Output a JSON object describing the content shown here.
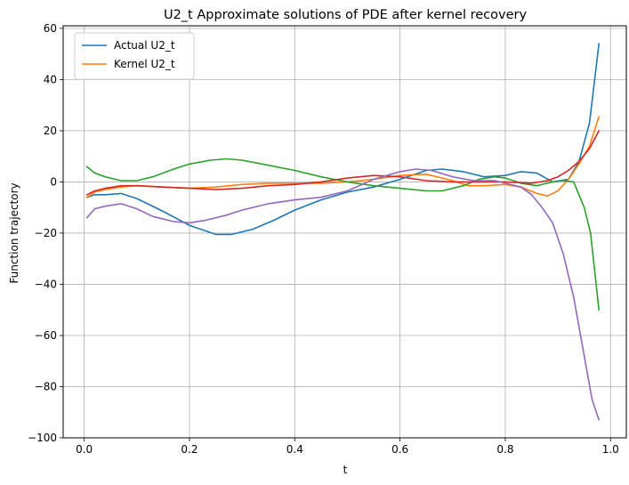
{
  "chart_data": {
    "type": "line",
    "title": "U2_t Approximate solutions of PDE after kernel recovery",
    "xlabel": "t",
    "ylabel": "Function trajectory",
    "xlim": [
      -0.04,
      1.03
    ],
    "ylim": [
      -100,
      61
    ],
    "xticks": [
      0.0,
      0.2,
      0.4,
      0.6,
      0.8,
      1.0
    ],
    "xtick_labels": [
      "0.0",
      "0.2",
      "0.4",
      "0.6",
      "0.8",
      "1.0"
    ],
    "yticks": [
      -100,
      -80,
      -60,
      -40,
      -20,
      0,
      20,
      40,
      60
    ],
    "ytick_labels": [
      "−100",
      "−80",
      "−60",
      "−40",
      "−20",
      "0",
      "20",
      "40",
      "60"
    ],
    "grid": true,
    "legend": {
      "position": "top-left",
      "entries": [
        {
          "label": "Actual U2_t",
          "color": "#1f77b4"
        },
        {
          "label": "Kernel U2_t",
          "color": "#ff7f0e"
        }
      ]
    },
    "series": [
      {
        "name": "Actual U2_t",
        "color": "#1f77b4",
        "x": [
          0.005,
          0.02,
          0.04,
          0.07,
          0.1,
          0.15,
          0.2,
          0.25,
          0.28,
          0.32,
          0.36,
          0.4,
          0.45,
          0.5,
          0.55,
          0.6,
          0.65,
          0.68,
          0.72,
          0.76,
          0.8,
          0.83,
          0.86,
          0.89,
          0.92,
          0.94,
          0.96,
          0.978
        ],
        "y": [
          -6,
          -5,
          -5,
          -4.5,
          -6.5,
          -11.5,
          -17,
          -20.5,
          -20.5,
          -18.5,
          -15,
          -11,
          -7,
          -4,
          -2,
          1,
          4.5,
          5,
          4,
          2,
          2.5,
          4,
          3.5,
          0,
          1,
          8,
          23,
          54
        ]
      },
      {
        "name": "Kernel U2_t",
        "color": "#ff7f0e",
        "x": [
          0.005,
          0.02,
          0.04,
          0.07,
          0.1,
          0.15,
          0.2,
          0.25,
          0.3,
          0.35,
          0.4,
          0.45,
          0.5,
          0.55,
          0.6,
          0.65,
          0.7,
          0.73,
          0.76,
          0.8,
          0.83,
          0.86,
          0.88,
          0.9,
          0.92,
          0.94,
          0.96,
          0.978
        ],
        "y": [
          -6,
          -4,
          -3,
          -2,
          -1.5,
          -2,
          -2.5,
          -2,
          -1,
          -0.5,
          -0.5,
          -0.5,
          0,
          1,
          2.5,
          3,
          0.5,
          -1.5,
          -1.5,
          -1,
          -2,
          -4.5,
          -5.5,
          -3.5,
          1,
          7,
          14,
          25.5
        ]
      },
      {
        "name": "",
        "color": "#2ca02c",
        "x": [
          0.005,
          0.02,
          0.04,
          0.07,
          0.1,
          0.13,
          0.17,
          0.2,
          0.24,
          0.27,
          0.3,
          0.35,
          0.4,
          0.45,
          0.5,
          0.55,
          0.6,
          0.65,
          0.68,
          0.72,
          0.75,
          0.78,
          0.8,
          0.83,
          0.86,
          0.89,
          0.91,
          0.93,
          0.95,
          0.962,
          0.978
        ],
        "y": [
          6,
          3.5,
          2,
          0.5,
          0.5,
          2,
          5,
          7,
          8.5,
          9,
          8.5,
          6.5,
          4.5,
          2,
          0,
          -1.5,
          -2.5,
          -3.5,
          -3.5,
          -1.5,
          1,
          2,
          1.5,
          -0.5,
          -1.5,
          0,
          0.5,
          0,
          -10,
          -20,
          -50
        ]
      },
      {
        "name": "",
        "color": "#d62728",
        "x": [
          0.005,
          0.02,
          0.04,
          0.07,
          0.1,
          0.15,
          0.2,
          0.25,
          0.3,
          0.35,
          0.4,
          0.45,
          0.5,
          0.55,
          0.6,
          0.65,
          0.7,
          0.75,
          0.8,
          0.85,
          0.88,
          0.9,
          0.92,
          0.94,
          0.96,
          0.978
        ],
        "y": [
          -5,
          -3.5,
          -2.5,
          -1.5,
          -1.5,
          -2,
          -2.5,
          -3,
          -2.5,
          -1.5,
          -1,
          0,
          1.5,
          2.5,
          2,
          0.5,
          0,
          0,
          0,
          -0.5,
          0.5,
          2,
          4.5,
          8,
          13,
          20
        ]
      },
      {
        "name": "",
        "color": "#9467bd",
        "x": [
          0.005,
          0.02,
          0.04,
          0.07,
          0.1,
          0.13,
          0.17,
          0.2,
          0.23,
          0.27,
          0.3,
          0.35,
          0.4,
          0.45,
          0.5,
          0.55,
          0.6,
          0.63,
          0.66,
          0.7,
          0.74,
          0.78,
          0.8,
          0.83,
          0.85,
          0.87,
          0.89,
          0.91,
          0.93,
          0.95,
          0.965,
          0.978
        ],
        "y": [
          -14,
          -10.5,
          -9.5,
          -8.5,
          -10.5,
          -13.5,
          -15.5,
          -16,
          -15,
          -13,
          -11,
          -8.5,
          -7,
          -6,
          -3.5,
          1,
          4,
          5,
          4.5,
          2,
          0.5,
          0.5,
          -0.5,
          -2,
          -5,
          -10,
          -16,
          -28,
          -45,
          -68,
          -85,
          -93
        ]
      }
    ]
  }
}
